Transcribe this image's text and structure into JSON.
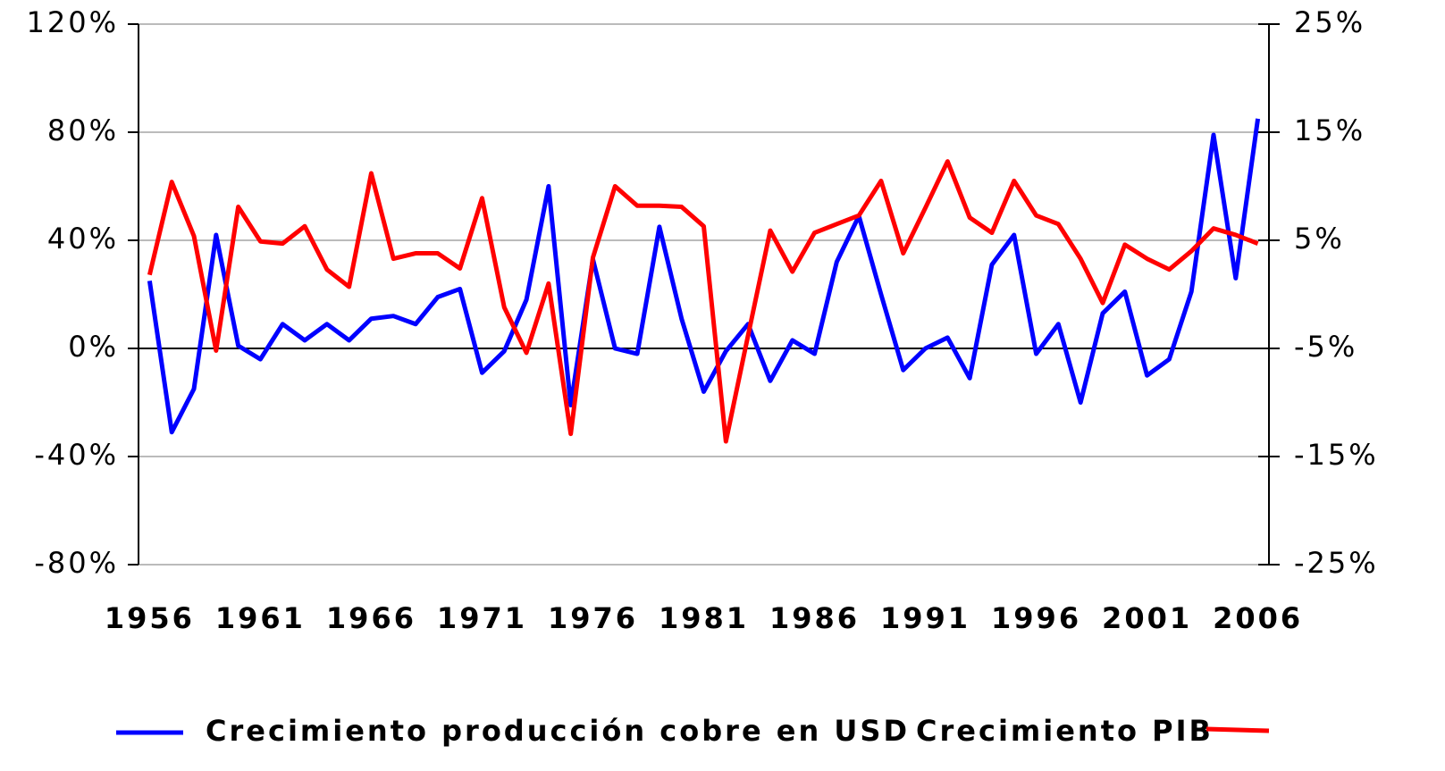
{
  "chart_data": {
    "type": "line",
    "x": [
      1956,
      1957,
      1958,
      1959,
      1960,
      1961,
      1962,
      1963,
      1964,
      1965,
      1966,
      1967,
      1968,
      1969,
      1970,
      1971,
      1972,
      1973,
      1974,
      1975,
      1976,
      1977,
      1978,
      1979,
      1980,
      1981,
      1982,
      1983,
      1984,
      1985,
      1986,
      1987,
      1988,
      1989,
      1990,
      1991,
      1992,
      1993,
      1994,
      1995,
      1996,
      1997,
      1998,
      1999,
      2000,
      2001,
      2002,
      2003,
      2004,
      2005,
      2006
    ],
    "xlim": [
      1955.5,
      2006.5
    ],
    "xticks": [
      1956,
      1961,
      1966,
      1971,
      1976,
      1981,
      1986,
      1991,
      1996,
      2001,
      2006
    ],
    "ylim": [
      -80,
      120
    ],
    "yticks": [
      {
        "value": -80,
        "label": "-80%"
      },
      {
        "value": -40,
        "label": "-40%"
      },
      {
        "value": 0,
        "label": "0%"
      },
      {
        "value": 40,
        "label": "40%"
      },
      {
        "value": 80,
        "label": "80%"
      },
      {
        "value": 120,
        "label": "120%"
      }
    ],
    "y2lim": [
      -25,
      25
    ],
    "y2ticks": [
      {
        "value": -25,
        "label": "-25%"
      },
      {
        "value": -15,
        "label": "-15%"
      },
      {
        "value": -5,
        "label": "-5%"
      },
      {
        "value": 5,
        "label": "5%"
      },
      {
        "value": 15,
        "label": "15%"
      },
      {
        "value": 25,
        "label": "25%"
      }
    ],
    "grid": true,
    "legend": "bottom",
    "series": [
      {
        "name": "Crecimiento producción cobre en USD",
        "color": "#0000ff",
        "axis": "y",
        "values": [
          25,
          -31,
          -15,
          42,
          1,
          -4,
          9,
          3,
          9,
          3,
          11,
          12,
          9,
          19,
          22,
          -9,
          -1,
          18,
          60,
          -21,
          33,
          0,
          -2,
          45,
          11,
          -16,
          -1,
          9,
          -12,
          3,
          -2,
          32,
          49,
          20,
          -8,
          0,
          4,
          -11,
          31,
          42,
          -2,
          9,
          -20,
          13,
          21,
          -10,
          -4,
          21,
          79,
          26,
          85
        ]
      },
      {
        "name": "Crecimiento PIB",
        "color": "#ff0000",
        "axis": "y2",
        "values": [
          1.8,
          10.4,
          5.4,
          -5.2,
          8.1,
          4.9,
          4.7,
          6.3,
          2.3,
          0.7,
          11.2,
          3.3,
          3.8,
          3.8,
          2.4,
          8.9,
          -1.2,
          -5.4,
          1.0,
          -12.9,
          3.4,
          10.0,
          8.2,
          8.2,
          8.1,
          6.3,
          -13.6,
          -3.8,
          5.9,
          2.1,
          5.7,
          6.5,
          7.3,
          10.5,
          3.8,
          8.0,
          12.3,
          7.1,
          5.7,
          10.5,
          7.3,
          6.5,
          3.3,
          -0.8,
          4.6,
          3.3,
          2.3,
          4.0,
          6.1,
          5.5,
          4.7
        ]
      }
    ]
  }
}
